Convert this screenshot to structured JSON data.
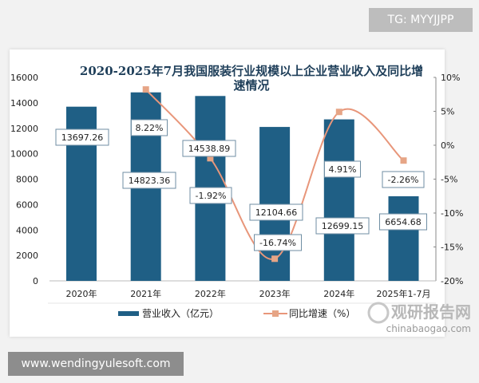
{
  "watermarks": {
    "tg": "TG: MYYJJPP",
    "site": "www.wendingyulesoft.com",
    "logo_cn": "观研报告网",
    "logo_en": "chinabaogao.com"
  },
  "chart_data": {
    "type": "bar+line",
    "title_line1": "2020-2025年7月我国服装行业规模以上企业营业收入及同比增",
    "title_line2": "速情况",
    "categories": [
      "2020年",
      "2021年",
      "2022年",
      "2023年",
      "2024年",
      "2025年1-7月"
    ],
    "series": [
      {
        "name": "营业收入（亿元）",
        "type": "bar",
        "axis": "left",
        "color": "#1f5f85",
        "values": [
          13697.26,
          14823.36,
          14538.89,
          12104.66,
          12699.15,
          6654.68
        ],
        "labels": [
          "13697.26",
          "14823.36",
          "14538.89",
          "12104.66",
          "12699.15",
          "6654.68"
        ]
      },
      {
        "name": "同比增速（%）",
        "type": "line",
        "axis": "right",
        "color": "#e8967a",
        "values": [
          null,
          8.22,
          -1.92,
          -16.74,
          4.91,
          -2.26
        ],
        "labels": [
          "",
          "8.22%",
          "-1.92%",
          "-16.74%",
          "4.91%",
          "-2.26%"
        ]
      }
    ],
    "y_left": {
      "min": 0,
      "max": 16000,
      "ticks": [
        "0",
        "2000",
        "4000",
        "6000",
        "8000",
        "10000",
        "12000",
        "14000",
        "16000"
      ]
    },
    "y_right": {
      "min": -20,
      "max": 10,
      "ticks": [
        "-20%",
        "-15%",
        "-10%",
        "-5%",
        "0%",
        "5%",
        "10%"
      ]
    },
    "grid": false,
    "legend": "bottom"
  }
}
